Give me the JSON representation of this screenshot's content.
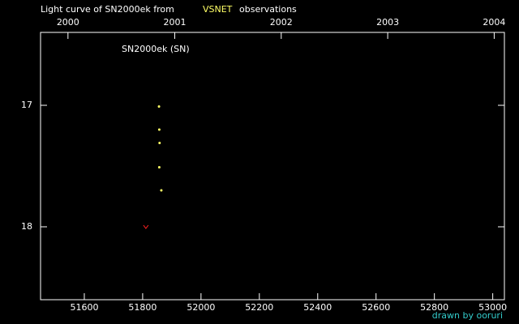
{
  "chart_data": {
    "type": "scatter",
    "title": {
      "prefix": "Light curve of SN2000ek from",
      "source": "VSNET",
      "suffix": "observations"
    },
    "annotation": "SN2000ek (SN)",
    "credit": "drawn by ooruri",
    "xlim": [
      51450,
      53040
    ],
    "xticks": [
      51600,
      51800,
      52000,
      52200,
      52400,
      52600,
      52800,
      53000
    ],
    "x2ticks": [
      {
        "value": 51544,
        "label": "2000"
      },
      {
        "value": 51910,
        "label": "2001"
      },
      {
        "value": 52275,
        "label": "2002"
      },
      {
        "value": 52640,
        "label": "2003"
      },
      {
        "value": 53005,
        "label": "2004"
      }
    ],
    "ylim": [
      16.4,
      18.6
    ],
    "y_reversed": true,
    "yticks": [
      17,
      18
    ],
    "series": [
      {
        "color": "#ffff66",
        "marker": "dot",
        "x": [
          51856,
          51857,
          51858,
          51857,
          51864
        ],
        "values": [
          17.01,
          17.2,
          17.31,
          17.51,
          17.7
        ]
      },
      {
        "color": "#ff2020",
        "marker": "v",
        "x": [
          51811
        ],
        "values": [
          18.0
        ]
      }
    ]
  }
}
